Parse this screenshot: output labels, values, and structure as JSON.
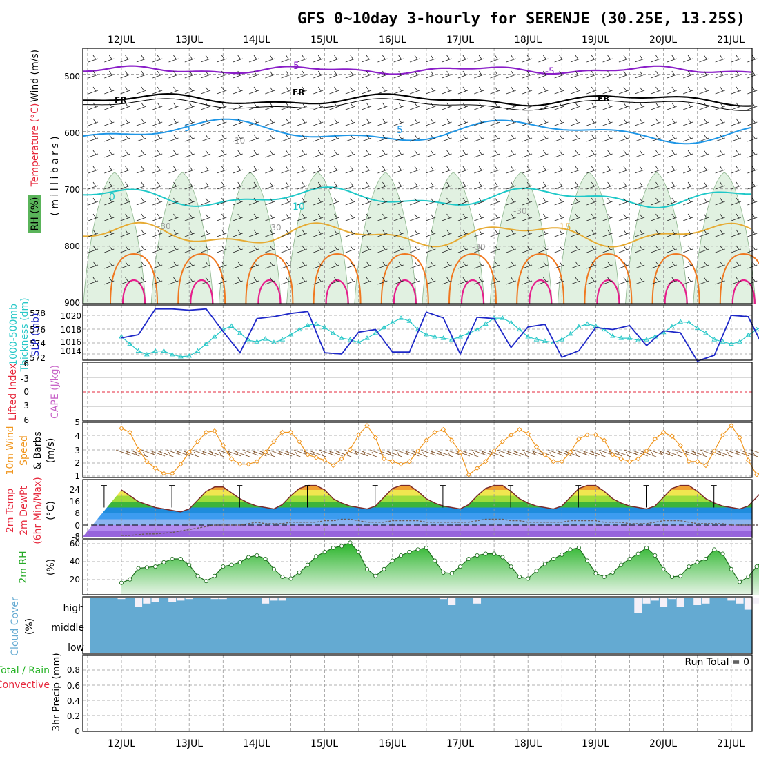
{
  "title": "GFS 0~10day 3-hourly for SERENJE (30.25E, 13.25S)",
  "dates": [
    "12JUL",
    "13JUL",
    "14JUL",
    "15JUL",
    "16JUL",
    "17JUL",
    "18JUL",
    "19JUL",
    "20JUL",
    "21JUL"
  ],
  "colors": {
    "wind_purple": "#8a1ec8",
    "freezing": "#000000",
    "iso_blue": "#1e96e6",
    "iso_teal": "#1ec8c8",
    "iso_gold": "#e6aa32",
    "iso_orange": "#f07820",
    "iso_pink": "#e61e8c",
    "rh_fill": "#c8e6c8",
    "slp": "#1e28c8",
    "thickness": "#28c8c8",
    "wind10": "#f0961e",
    "cloud": "#64aad2",
    "precip_grid": "#aaaaaa"
  },
  "panels": {
    "upper": {
      "ylabel_parts": [
        "RH (%)",
        "Temperature (°C)",
        "Wind (m/s)"
      ],
      "ylabel_unit": "( m i l l i b a r s )",
      "yticks": [
        "500",
        "600",
        "700",
        "800",
        "900"
      ],
      "contour_labels": [
        "-5",
        "-5",
        "FR",
        "FR",
        "FR",
        "5",
        "5",
        "0",
        "10",
        "15",
        "10",
        "-30",
        "-30",
        "-30",
        "-30"
      ]
    },
    "slp": {
      "ylabel_left": [
        "1000-500mb",
        "Thickness (dm)"
      ],
      "ylabel_right": "SLP (mb)",
      "yticks_left": [
        "578",
        "576",
        "574",
        "572"
      ],
      "yticks_right": [
        "1020",
        "1018",
        "1016",
        "1014"
      ]
    },
    "li": {
      "ylabel_left": "Lifted Index",
      "ylabel_right": "CAPE (J/kg)",
      "yticks": [
        "-6",
        "-3",
        "0",
        "3",
        "6"
      ]
    },
    "wind10": {
      "ylabel": [
        "10m Wind",
        "Speed",
        "& Barbs"
      ],
      "unit": "(m/s)",
      "yticks": [
        "5",
        "4",
        "3",
        "2",
        "1"
      ]
    },
    "temp": {
      "ylabel": [
        "2m Temp",
        "2m DewPt",
        "(6hr Min/Max)"
      ],
      "unit": "(°C)",
      "yticks": [
        "24",
        "16",
        "8",
        "0",
        "-8"
      ]
    },
    "rh2m": {
      "ylabel": "2m RH",
      "unit": "(%)",
      "yticks": [
        "60",
        "40",
        "20"
      ]
    },
    "cloud": {
      "ylabel": "Cloud Cover",
      "unit": "(%)",
      "levels": [
        "high",
        "middle",
        "low"
      ]
    },
    "precip": {
      "ylabel_total": "Total / Rain",
      "ylabel_conv": "Convective",
      "ylabel": "3hr Precip (mm)",
      "yticks": [
        "0.8",
        "0.6",
        "0.4",
        "0.2",
        "0"
      ],
      "run_total": "Run Total = 0"
    }
  },
  "chart_data": [
    {
      "type": "line",
      "title": "GFS 0~10day 3-hourly for SERENJE (30.25E, 13.25S)",
      "ylabel": "SLP (mb)",
      "x_start": "11JUL 12Z",
      "x_step_hours": 6,
      "series": [
        {
          "name": "SLP (mb)",
          "values": [
            1016.5,
            1017,
            1021,
            1021,
            1020.8,
            1021,
            1017.5,
            1014.2,
            1019.5,
            1019.8,
            1020.3,
            1020.6,
            1014.2,
            1014,
            1017.4,
            1017.8,
            1014.3,
            1014.3,
            1020.5,
            1019.6,
            1014,
            1019.7,
            1019.5,
            1015,
            1018.2,
            1018.6,
            1013.5,
            1014.5,
            1018.1,
            1017.8,
            1018.4,
            1015.3,
            1017.6,
            1017.3,
            1012.9,
            1013.8,
            1020,
            1019.8,
            1014.5,
            1019.1,
            1017,
            1016.3,
            1018.6,
            1019.6,
            1014.5,
            1020.2,
            1019.5,
            1015.3,
            1018.5,
            1019.8,
            1014.4,
            1016.9,
            1016.6,
            1020.4,
            1016.3,
            1016.8,
            1015.5,
            1020.8,
            1019.6,
            1015.6,
            1019.8,
            1019.8,
            1016.5,
            1018.9,
            1020.8,
            1015.3,
            1019.5,
            1019.4,
            1015,
            1017.8,
            1017,
            1020.5,
            1020.5,
            1020.5
          ]
        }
      ]
    },
    {
      "type": "line",
      "ylabel": "1000-500mb Thickness (dm)",
      "x_start": "11JUL 12Z",
      "x_step_hours": 3,
      "series": [
        {
          "name": "1000-500mb Thickness (dm)",
          "values": [
            575,
            574,
            573,
            572.5,
            573,
            573,
            572.5,
            572.2,
            572.3,
            573,
            574,
            575,
            576,
            576.5,
            575.5,
            574.5,
            574.3,
            574.7,
            574.2,
            574.6,
            575.3,
            576,
            576.6,
            576.8,
            576.3,
            575.5,
            574.8,
            574.6,
            574.2,
            574.8,
            575.5,
            576.3,
            577,
            577.6,
            577.2,
            576,
            575.3,
            575,
            574.8,
            574.6,
            575,
            575.5,
            576,
            576.8,
            577.6,
            577.6,
            577,
            576,
            575,
            574.6,
            574.4,
            574.2,
            574.6,
            575.4,
            576.4,
            576.8,
            576.5,
            576,
            575.1,
            574.8,
            574.8,
            574.5,
            574.6,
            575,
            575.6,
            576.4,
            577.1,
            577,
            576.2,
            575.5,
            574.6,
            574.3,
            574,
            574.3,
            575.2,
            576,
            576.6,
            577,
            576.5,
            575.7
          ]
        }
      ]
    },
    {
      "type": "line",
      "ylabel": "10m Wind Speed (m/s)",
      "x_start": "11JUL 12Z",
      "x_step_hours": 3,
      "series": [
        {
          "name": "10m Wind Speed",
          "values": [
            4.6,
            4.3,
            3,
            2.1,
            1.6,
            1.2,
            1.2,
            1.9,
            2.8,
            3.6,
            4.3,
            4.4,
            3.3,
            2.3,
            1.9,
            1.9,
            2.1,
            2.8,
            3.6,
            4.3,
            4.3,
            3.6,
            2.6,
            2.4,
            2.2,
            1.8,
            2.3,
            3,
            4.1,
            4.8,
            3.9,
            2.3,
            2.1,
            1.9,
            2.1,
            2.9,
            3.7,
            4.3,
            4.5,
            3.7,
            2.8,
            1.1,
            1.6,
            2.1,
            2.9,
            3.6,
            4.1,
            4.5,
            4.2,
            3.2,
            2.6,
            2.1,
            2.1,
            2.8,
            3.8,
            4.1,
            4.1,
            3.7,
            2.6,
            2.3,
            2.1,
            2.3,
            2.9,
            3.8,
            4.3,
            4,
            3.3,
            2.1,
            2.1,
            1.8,
            2.9,
            4.1,
            4.8,
            3.9,
            2.2,
            1.1,
            1.4,
            1.7,
            1.4,
            2.1,
            3.1,
            4.3,
            4.5,
            3.4,
            2.4,
            2.1,
            2.6,
            3.7
          ]
        }
      ]
    },
    {
      "type": "area",
      "ylabel": "2m Temp (°C)",
      "x_start": "11JUL 12Z",
      "x_step_hours": 3,
      "series": [
        {
          "name": "2m Temp",
          "values": [
            24,
            20,
            16,
            14,
            12,
            11,
            10,
            9,
            11,
            17,
            23,
            26,
            26,
            22,
            18,
            15,
            13,
            12,
            11,
            14,
            20,
            25,
            27,
            27,
            24,
            18,
            15,
            13,
            12,
            11,
            13,
            19,
            25,
            27,
            27,
            23,
            18,
            15,
            13,
            12,
            11,
            14,
            20,
            25,
            27,
            27,
            23,
            18,
            15,
            13,
            12,
            11,
            13,
            19,
            25,
            27,
            27,
            23,
            18,
            15,
            13,
            12,
            11,
            13,
            19,
            25,
            27,
            27,
            23,
            18,
            15,
            13,
            12,
            11,
            13,
            19,
            25,
            27,
            27,
            23,
            17,
            14,
            13,
            12,
            11,
            12
          ]
        },
        {
          "name": "2m DewPt",
          "values": [
            -7,
            -7,
            -6.5,
            -6,
            -6,
            -5.5,
            -5,
            -4,
            -3,
            -2,
            -1,
            0,
            0,
            0,
            0,
            1,
            2,
            1,
            1,
            1,
            2,
            2,
            2,
            2,
            3,
            3,
            4,
            4,
            3,
            2,
            2,
            2,
            3,
            3,
            3,
            3,
            2,
            2,
            2,
            2,
            2,
            2,
            3,
            4,
            4,
            4,
            3,
            3,
            2,
            2,
            2,
            2,
            2,
            3,
            3,
            3,
            3,
            2,
            2,
            2,
            1,
            1,
            1,
            2,
            3,
            3,
            3,
            2,
            1,
            1,
            1,
            1,
            0,
            0,
            0,
            0,
            0,
            -1,
            -1,
            0,
            0,
            1,
            1,
            2,
            3,
            3
          ]
        }
      ]
    },
    {
      "type": "area",
      "ylabel": "2m RH (%)",
      "x_start": "11JUL 12Z",
      "x_step_hours": 3,
      "series": [
        {
          "name": "2m RH",
          "values": [
            14,
            18,
            31,
            32,
            33,
            38,
            42,
            42,
            35,
            22,
            16,
            22,
            33,
            35,
            38,
            44,
            46,
            42,
            30,
            21,
            19,
            26,
            35,
            45,
            50,
            55,
            57,
            61,
            50,
            30,
            22,
            30,
            40,
            46,
            50,
            53,
            55,
            40,
            26,
            25,
            33,
            42,
            46,
            48,
            48,
            44,
            33,
            21,
            19,
            28,
            36,
            42,
            47,
            53,
            55,
            40,
            25,
            21,
            26,
            35,
            42,
            48,
            55,
            46,
            30,
            21,
            22,
            33,
            38,
            42,
            53,
            48,
            30,
            15,
            21,
            33,
            42,
            44,
            45,
            42,
            30,
            19,
            21,
            33,
            36,
            38,
            42,
            45,
            37
          ]
        }
      ]
    },
    {
      "type": "bar",
      "ylabel": "Cloud Cover high (%)",
      "x_start": "11JUL 12Z",
      "x_step_hours": 3,
      "series": [
        {
          "name": "high cloud",
          "values": [
            10,
            0,
            60,
            40,
            30,
            0,
            30,
            20,
            10,
            0,
            0,
            10,
            10,
            0,
            0,
            0,
            0,
            40,
            20,
            20,
            0,
            0,
            0,
            0,
            0,
            0,
            0,
            0,
            0,
            0,
            0,
            0,
            0,
            0,
            0,
            0,
            0,
            0,
            10,
            50,
            0,
            0,
            40,
            0,
            0,
            0,
            0,
            0,
            0,
            0,
            0,
            0,
            0,
            0,
            0,
            0,
            0,
            0,
            0,
            0,
            0,
            100,
            40,
            20,
            60,
            10,
            60,
            0,
            50,
            40,
            0,
            0,
            20,
            40,
            80,
            40,
            10,
            10,
            0,
            0,
            0,
            0,
            0,
            0,
            0,
            0,
            0,
            0,
            0
          ]
        }
      ]
    },
    {
      "type": "bar",
      "ylabel": "3hr Precip (mm)",
      "ylim": [
        0,
        0.9
      ],
      "series": [
        {
          "name": "Total / Rain",
          "values": [
            0
          ]
        }
      ]
    }
  ]
}
